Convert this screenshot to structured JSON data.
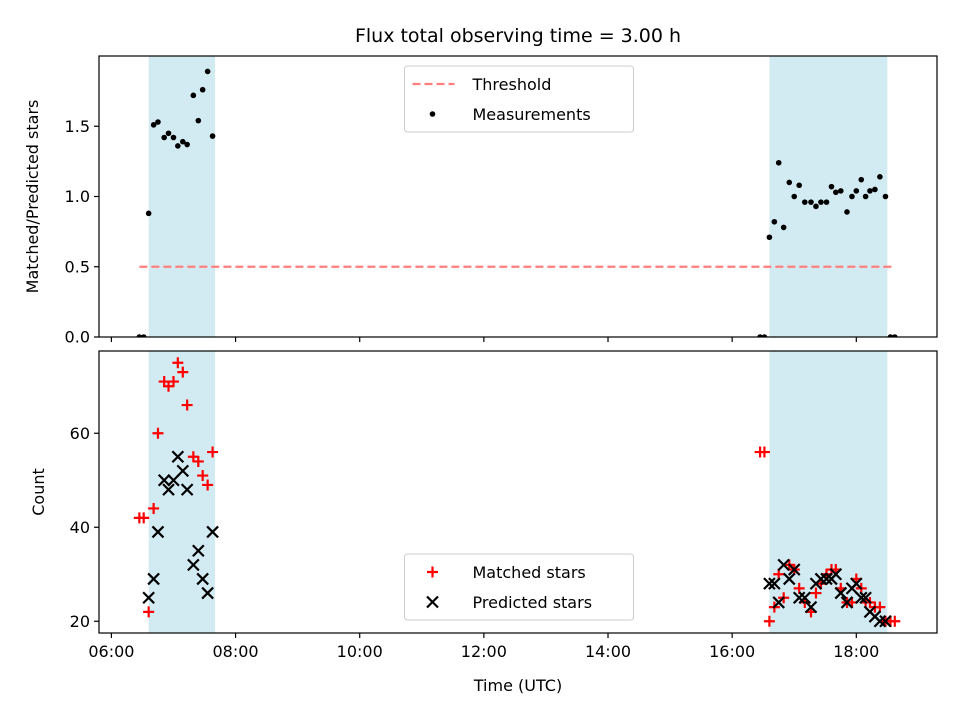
{
  "chart_data": {
    "type": "scatter",
    "title": "Flux total observing time = 3.00 h",
    "xlabel": "Time (UTC)",
    "x_unit": "hours UTC",
    "xlim": [
      5.8,
      19.3
    ],
    "x_ticks": [
      {
        "value": 6,
        "label": "06:00"
      },
      {
        "value": 8,
        "label": "08:00"
      },
      {
        "value": 10,
        "label": "10:00"
      },
      {
        "value": 12,
        "label": "12:00"
      },
      {
        "value": 14,
        "label": "14:00"
      },
      {
        "value": 16,
        "label": "16:00"
      },
      {
        "value": 18,
        "label": "18:00"
      }
    ],
    "shaded_intervals": [
      [
        6.6,
        7.67
      ],
      [
        16.6,
        18.5
      ]
    ],
    "shade_color": "#add8e6",
    "panels": [
      {
        "id": "ratio",
        "ylabel": "Matched/Predicted stars",
        "ylim": [
          0,
          2.0
        ],
        "y_ticks": [
          {
            "value": 0,
            "label": "0.0"
          },
          {
            "value": 0.5,
            "label": "0.5"
          },
          {
            "value": 1.0,
            "label": "1.0"
          },
          {
            "value": 1.5,
            "label": "1.5"
          }
        ],
        "legend": {
          "placement": "upper-center",
          "entries": [
            "Threshold",
            "Measurements"
          ]
        },
        "threshold": {
          "name": "Threshold",
          "y": 0.5,
          "x_range": [
            6.45,
            18.6
          ],
          "color": "#ff7f7f",
          "style": "dashed"
        },
        "series": [
          {
            "name": "Measurements",
            "marker": "dot",
            "color": "#000000",
            "points": [
              [
                6.45,
                0.0
              ],
              [
                6.52,
                0.0
              ],
              [
                6.6,
                0.88
              ],
              [
                6.68,
                1.51
              ],
              [
                6.75,
                1.53
              ],
              [
                6.85,
                1.42
              ],
              [
                6.92,
                1.45
              ],
              [
                7.0,
                1.42
              ],
              [
                7.07,
                1.36
              ],
              [
                7.15,
                1.39
              ],
              [
                7.22,
                1.37
              ],
              [
                7.32,
                1.72
              ],
              [
                7.4,
                1.54
              ],
              [
                7.47,
                1.76
              ],
              [
                7.55,
                1.89
              ],
              [
                7.63,
                1.43
              ],
              [
                16.45,
                0.0
              ],
              [
                16.52,
                0.0
              ],
              [
                16.6,
                0.71
              ],
              [
                16.68,
                0.82
              ],
              [
                16.75,
                1.24
              ],
              [
                16.83,
                0.78
              ],
              [
                16.92,
                1.1
              ],
              [
                17.0,
                1.0
              ],
              [
                17.08,
                1.08
              ],
              [
                17.17,
                0.96
              ],
              [
                17.27,
                0.96
              ],
              [
                17.35,
                0.93
              ],
              [
                17.43,
                0.96
              ],
              [
                17.52,
                0.96
              ],
              [
                17.6,
                1.07
              ],
              [
                17.67,
                1.03
              ],
              [
                17.75,
                1.04
              ],
              [
                17.85,
                0.89
              ],
              [
                17.93,
                1.0
              ],
              [
                18.0,
                1.04
              ],
              [
                18.08,
                1.12
              ],
              [
                18.15,
                1.0
              ],
              [
                18.22,
                1.04
              ],
              [
                18.3,
                1.05
              ],
              [
                18.38,
                1.14
              ],
              [
                18.47,
                1.0
              ],
              [
                18.55,
                0.0
              ],
              [
                18.62,
                0.0
              ]
            ]
          }
        ]
      },
      {
        "id": "count",
        "ylabel": "Count",
        "ylim": [
          17.5,
          77.5
        ],
        "y_ticks": [
          {
            "value": 20,
            "label": "20"
          },
          {
            "value": 40,
            "label": "40"
          },
          {
            "value": 60,
            "label": "60"
          }
        ],
        "legend": {
          "placement": "lower-center",
          "entries": [
            "Matched stars",
            "Predicted stars"
          ]
        },
        "series": [
          {
            "name": "Matched stars",
            "marker": "plus",
            "color": "#ff0000",
            "points": [
              [
                6.45,
                42
              ],
              [
                6.52,
                42
              ],
              [
                6.6,
                22
              ],
              [
                6.68,
                44
              ],
              [
                6.75,
                60
              ],
              [
                6.85,
                71
              ],
              [
                6.92,
                70
              ],
              [
                7.0,
                71
              ],
              [
                7.07,
                75
              ],
              [
                7.15,
                73
              ],
              [
                7.22,
                66
              ],
              [
                7.32,
                55
              ],
              [
                7.4,
                54
              ],
              [
                7.47,
                51
              ],
              [
                7.55,
                49
              ],
              [
                7.63,
                56
              ],
              [
                16.45,
                56
              ],
              [
                16.52,
                56
              ],
              [
                16.6,
                20
              ],
              [
                16.68,
                23
              ],
              [
                16.75,
                30
              ],
              [
                16.83,
                25
              ],
              [
                16.92,
                32
              ],
              [
                17.0,
                31
              ],
              [
                17.08,
                27
              ],
              [
                17.17,
                24
              ],
              [
                17.27,
                22
              ],
              [
                17.35,
                26
              ],
              [
                17.43,
                28
              ],
              [
                17.52,
                30
              ],
              [
                17.6,
                31
              ],
              [
                17.67,
                31
              ],
              [
                17.75,
                27
              ],
              [
                17.85,
                24
              ],
              [
                17.93,
                24
              ],
              [
                18.0,
                29
              ],
              [
                18.08,
                27
              ],
              [
                18.15,
                24
              ],
              [
                18.22,
                24
              ],
              [
                18.3,
                23
              ],
              [
                18.38,
                23
              ],
              [
                18.47,
                20
              ],
              [
                18.55,
                20
              ],
              [
                18.62,
                20
              ]
            ]
          },
          {
            "name": "Predicted stars",
            "marker": "x",
            "color": "#000000",
            "points": [
              [
                6.6,
                25
              ],
              [
                6.68,
                29
              ],
              [
                6.75,
                39
              ],
              [
                6.85,
                50
              ],
              [
                6.92,
                48
              ],
              [
                7.0,
                50
              ],
              [
                7.07,
                55
              ],
              [
                7.15,
                52
              ],
              [
                7.22,
                48
              ],
              [
                7.32,
                32
              ],
              [
                7.4,
                35
              ],
              [
                7.47,
                29
              ],
              [
                7.55,
                26
              ],
              [
                7.63,
                39
              ],
              [
                16.6,
                28
              ],
              [
                16.68,
                28
              ],
              [
                16.75,
                24
              ],
              [
                16.83,
                32
              ],
              [
                16.92,
                29
              ],
              [
                17.0,
                31
              ],
              [
                17.08,
                25
              ],
              [
                17.17,
                25
              ],
              [
                17.27,
                23
              ],
              [
                17.35,
                28
              ],
              [
                17.43,
                29
              ],
              [
                17.52,
                29
              ],
              [
                17.6,
                29
              ],
              [
                17.67,
                30
              ],
              [
                17.75,
                26
              ],
              [
                17.85,
                24
              ],
              [
                17.93,
                27
              ],
              [
                18.0,
                28
              ],
              [
                18.08,
                25
              ],
              [
                18.15,
                25
              ],
              [
                18.22,
                22
              ],
              [
                18.3,
                21
              ],
              [
                18.38,
                20
              ],
              [
                18.47,
                20
              ]
            ]
          }
        ]
      }
    ]
  }
}
